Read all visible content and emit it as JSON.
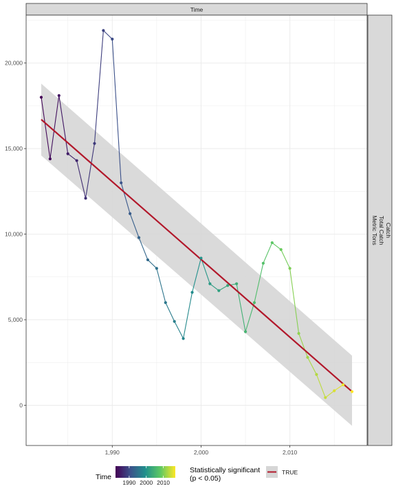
{
  "chart_data": {
    "type": "line",
    "facet_top": "Time",
    "facet_right": [
      "Catch",
      "Total Catch",
      "Metric Tons"
    ],
    "x": [
      1982,
      1983,
      1984,
      1985,
      1986,
      1987,
      1988,
      1989,
      1990,
      1991,
      1992,
      1993,
      1994,
      1995,
      1996,
      1997,
      1998,
      1999,
      2000,
      2001,
      2002,
      2003,
      2004,
      2005,
      2006,
      2007,
      2008,
      2009,
      2010,
      2011,
      2012,
      2013,
      2014,
      2015,
      2016,
      2017
    ],
    "y": [
      18000,
      14400,
      18100,
      14700,
      14300,
      12100,
      15300,
      21900,
      21400,
      13000,
      11200,
      9800,
      8500,
      8000,
      6000,
      4900,
      3900,
      6600,
      8600,
      7100,
      6700,
      7000,
      7100,
      4300,
      6000,
      8300,
      9500,
      9100,
      8000,
      4200,
      2800,
      1800,
      450,
      850,
      1200,
      800
    ],
    "trend": {
      "x": [
        1982,
        2017
      ],
      "y": [
        16700,
        800
      ],
      "band_start": [
        14600,
        18800
      ],
      "band_end": [
        -1200,
        2900
      ]
    },
    "xlim": [
      1980.3,
      2018.7
    ],
    "ylim": [
      -2350,
      22800
    ],
    "x_ticks": [
      1990,
      2000,
      2010
    ],
    "x_tick_labels": [
      "1,990",
      "2,000",
      "2,010"
    ],
    "y_ticks": [
      0,
      5000,
      10000,
      15000,
      20000
    ],
    "y_tick_labels": [
      "0",
      "5,000",
      "10,000",
      "15,000",
      "20,000"
    ],
    "grid": true,
    "colors": {
      "trend": "#B2182B",
      "band": "#D6D6D6",
      "panel_border": "#333333",
      "grid": "#EBEBEB",
      "strip_fill": "#D9D9D9",
      "viridis": [
        "#440154",
        "#3B528B",
        "#21908C",
        "#5DC863",
        "#FDE725"
      ]
    },
    "legend": {
      "position": "bottom",
      "color_title": "Time",
      "color_range": [
        1982,
        2017
      ],
      "color_ticks": [
        1990,
        2000,
        2010
      ],
      "color_tick_labels": [
        "1990",
        "2000",
        "2010"
      ],
      "sig_title_1": "Statistically significant",
      "sig_title_2": "(p < 0.05)",
      "sig_key_label": "TRUE"
    }
  }
}
